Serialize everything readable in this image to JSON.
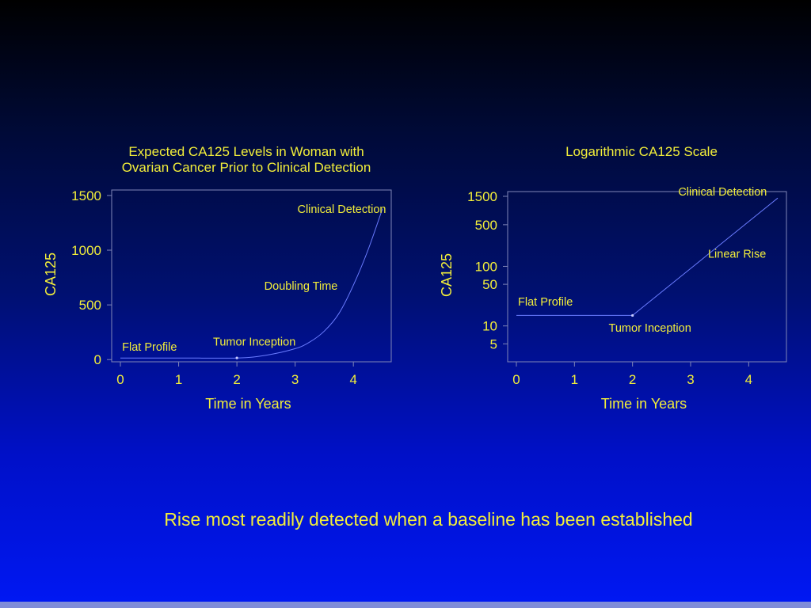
{
  "colors": {
    "text": "#f2ee3a",
    "axis": "#7f86b8",
    "curve": "#6a7cff"
  },
  "footer": {
    "caption": "Rise most readily detected when a baseline has been established"
  },
  "chart_data": [
    {
      "type": "line",
      "title_line1": "Expected CA125 Levels in Woman with",
      "title_line2": "Ovarian Cancer Prior to Clinical Detection",
      "xlabel": "Time in Years",
      "ylabel": "CA125",
      "xlim": [
        -0.15,
        4.65
      ],
      "ylim": [
        -20,
        1550
      ],
      "y_scale": "linear",
      "x_ticks": [
        0,
        1,
        2,
        3,
        4
      ],
      "x_tick_labels": [
        "0",
        "1",
        "2",
        "3",
        "4"
      ],
      "y_ticks": [
        0,
        500,
        1000,
        1500
      ],
      "y_tick_labels": [
        "0",
        "500",
        "1000",
        "1500"
      ],
      "series": [
        {
          "x": [
            0,
            1,
            2,
            2.5,
            3,
            3.25,
            3.5,
            3.75,
            4,
            4.25,
            4.5
          ],
          "y": [
            15,
            15,
            15,
            40,
            100,
            160,
            260,
            420,
            680,
            1000,
            1380
          ]
        }
      ],
      "marker": {
        "x": 2,
        "y": 15
      },
      "annotations": [
        {
          "text": "Flat Profile",
          "x": 0.5,
          "y": 80
        },
        {
          "text": "Tumor Inception",
          "x": 2.3,
          "y": 130
        },
        {
          "text": "Doubling Time",
          "x": 3.1,
          "y": 640
        },
        {
          "text": "Clinical Detection",
          "x": 3.8,
          "y": 1340
        }
      ]
    },
    {
      "type": "line",
      "title": "Logarithmic CA125 Scale",
      "xlabel": "Time in Years",
      "ylabel": "CA125",
      "xlim": [
        -0.15,
        4.65
      ],
      "ylim": [
        2.5,
        1800
      ],
      "y_scale": "log",
      "x_ticks": [
        0,
        1,
        2,
        3,
        4
      ],
      "x_tick_labels": [
        "0",
        "1",
        "2",
        "3",
        "4"
      ],
      "y_ticks": [
        5,
        10,
        50,
        100,
        500,
        1500
      ],
      "y_tick_labels": [
        "5",
        "10",
        "50",
        "100",
        "500",
        "1500"
      ],
      "series": [
        {
          "x": [
            0,
            2,
            4.5
          ],
          "y": [
            15,
            15,
            1400
          ]
        }
      ],
      "marker": {
        "x": 2,
        "y": 15
      },
      "annotations": [
        {
          "text": "Flat Profile",
          "x": 0.5,
          "y": 22
        },
        {
          "text": "Tumor Inception",
          "x": 2.3,
          "y": 8
        },
        {
          "text": "Linear Rise",
          "x": 3.8,
          "y": 140
        },
        {
          "text": "Clinical Detection",
          "x": 3.55,
          "y": 1550
        }
      ]
    }
  ]
}
